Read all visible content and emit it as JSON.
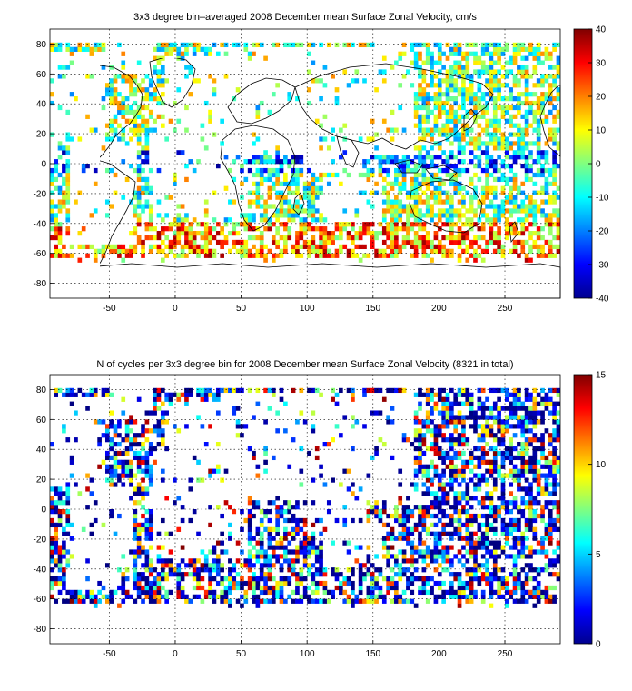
{
  "chart_data": [
    {
      "type": "heatmap",
      "title": "3x3 degree bin–averaged 2008 December mean Surface Zonal Velocity, cm/s",
      "xlabel": "",
      "ylabel": "",
      "xlim": [
        -95,
        292
      ],
      "ylim": [
        -90,
        90
      ],
      "xticks": [
        -50,
        0,
        50,
        100,
        150,
        200,
        250
      ],
      "yticks": [
        80,
        60,
        40,
        20,
        0,
        -20,
        -40,
        -60,
        -80
      ],
      "grid": true,
      "bin_size_deg": 3,
      "colormap": "jet",
      "colorbar": {
        "min": -40,
        "max": 40,
        "ticks": [
          40,
          30,
          20,
          10,
          0,
          -10,
          -20,
          -30,
          -40
        ]
      },
      "field": "zonal_velocity_cm_s"
    },
    {
      "type": "heatmap",
      "title": "N of cycles per 3x3 degree bin for 2008 December mean Surface Zonal Velocity (8321 in total)",
      "xlabel": "",
      "ylabel": "",
      "xlim": [
        -95,
        292
      ],
      "ylim": [
        -90,
        90
      ],
      "xticks": [
        -50,
        0,
        50,
        100,
        150,
        200,
        250
      ],
      "yticks": [
        80,
        60,
        40,
        20,
        0,
        -20,
        -40,
        -60,
        -80
      ],
      "grid": true,
      "bin_size_deg": 3,
      "colormap": "jet",
      "colorbar": {
        "min": 0,
        "max": 15,
        "ticks": [
          15,
          10,
          5,
          0
        ]
      },
      "field": "cycle_count",
      "total": 8321
    }
  ]
}
